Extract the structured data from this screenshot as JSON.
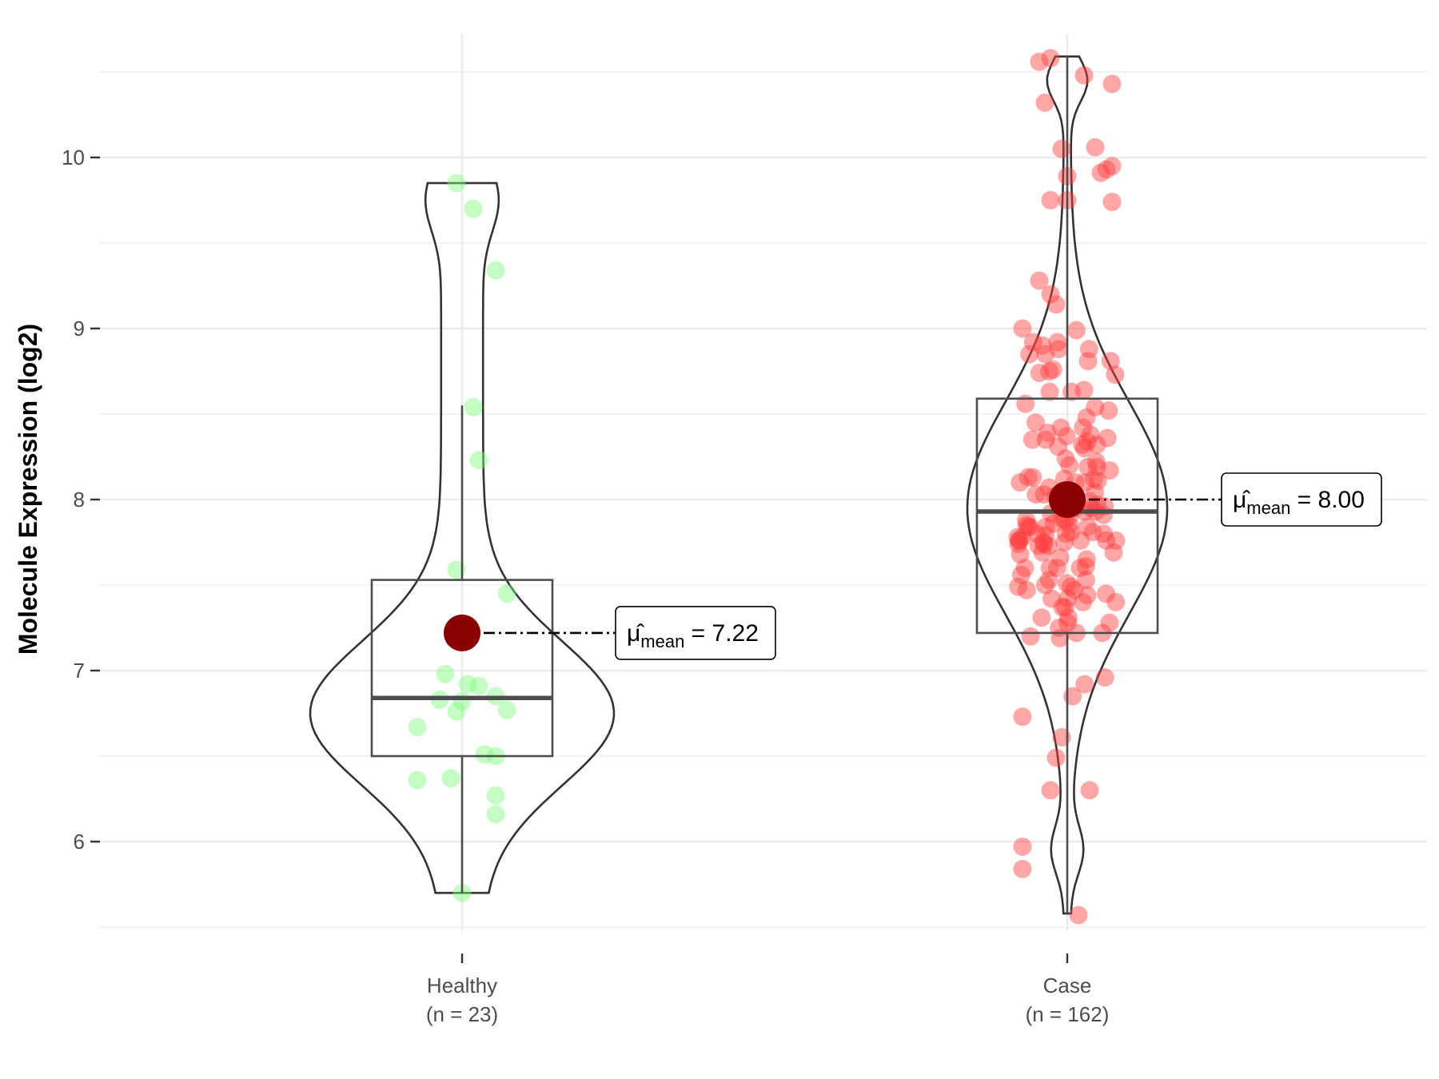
{
  "chart_data": {
    "type": "violin",
    "ylabel": "Molecule Expression (log2)",
    "xlabel": "",
    "ylim": [
      5.48,
      10.72
    ],
    "y_ticks": [
      6,
      7,
      8,
      9,
      10
    ],
    "y_tick_labels": [
      "6",
      "7",
      "8",
      "9",
      "10"
    ],
    "grid": true,
    "groups": [
      {
        "name": "Healthy",
        "n_label": "(n = 23)",
        "color": "#7cfc7c",
        "box": {
          "min": 5.7,
          "q1": 6.5,
          "median": 6.84,
          "q3": 7.53,
          "max": 8.55
        },
        "violin_range": [
          5.7,
          9.85
        ],
        "mean": 7.22,
        "mean_label_value": "7.22",
        "points": [
          {
            "x": -0.01,
            "y": 9.85
          },
          {
            "x": 0.02,
            "y": 9.7
          },
          {
            "x": 0.06,
            "y": 9.34
          },
          {
            "x": 0.02,
            "y": 8.54
          },
          {
            "x": 0.03,
            "y": 8.23
          },
          {
            "x": -0.01,
            "y": 7.59
          },
          {
            "x": 0.08,
            "y": 7.45
          },
          {
            "x": -0.03,
            "y": 6.98
          },
          {
            "x": 0.01,
            "y": 6.92
          },
          {
            "x": 0.03,
            "y": 6.91
          },
          {
            "x": 0.06,
            "y": 6.85
          },
          {
            "x": -0.04,
            "y": 6.83
          },
          {
            "x": 0.0,
            "y": 6.82
          },
          {
            "x": 0.08,
            "y": 6.77
          },
          {
            "x": -0.01,
            "y": 6.76
          },
          {
            "x": -0.08,
            "y": 6.67
          },
          {
            "x": 0.04,
            "y": 6.51
          },
          {
            "x": 0.06,
            "y": 6.5
          },
          {
            "x": -0.02,
            "y": 6.37
          },
          {
            "x": -0.08,
            "y": 6.36
          },
          {
            "x": 0.06,
            "y": 6.27
          },
          {
            "x": 0.06,
            "y": 6.16
          },
          {
            "x": 0.0,
            "y": 5.7
          }
        ]
      },
      {
        "name": "Case",
        "n_label": "(n = 162)",
        "color": "#ff3b3b",
        "box": {
          "min": 5.58,
          "q1": 7.22,
          "median": 7.93,
          "q3": 8.59,
          "max": 10.59
        },
        "violin_range": [
          5.58,
          10.59
        ],
        "mean": 8.0,
        "mean_label_value": "8.00",
        "points": []
      }
    ]
  },
  "annotation_prefix": "μ̂",
  "annotation_sub": "mean",
  "annotation_eq": " = "
}
